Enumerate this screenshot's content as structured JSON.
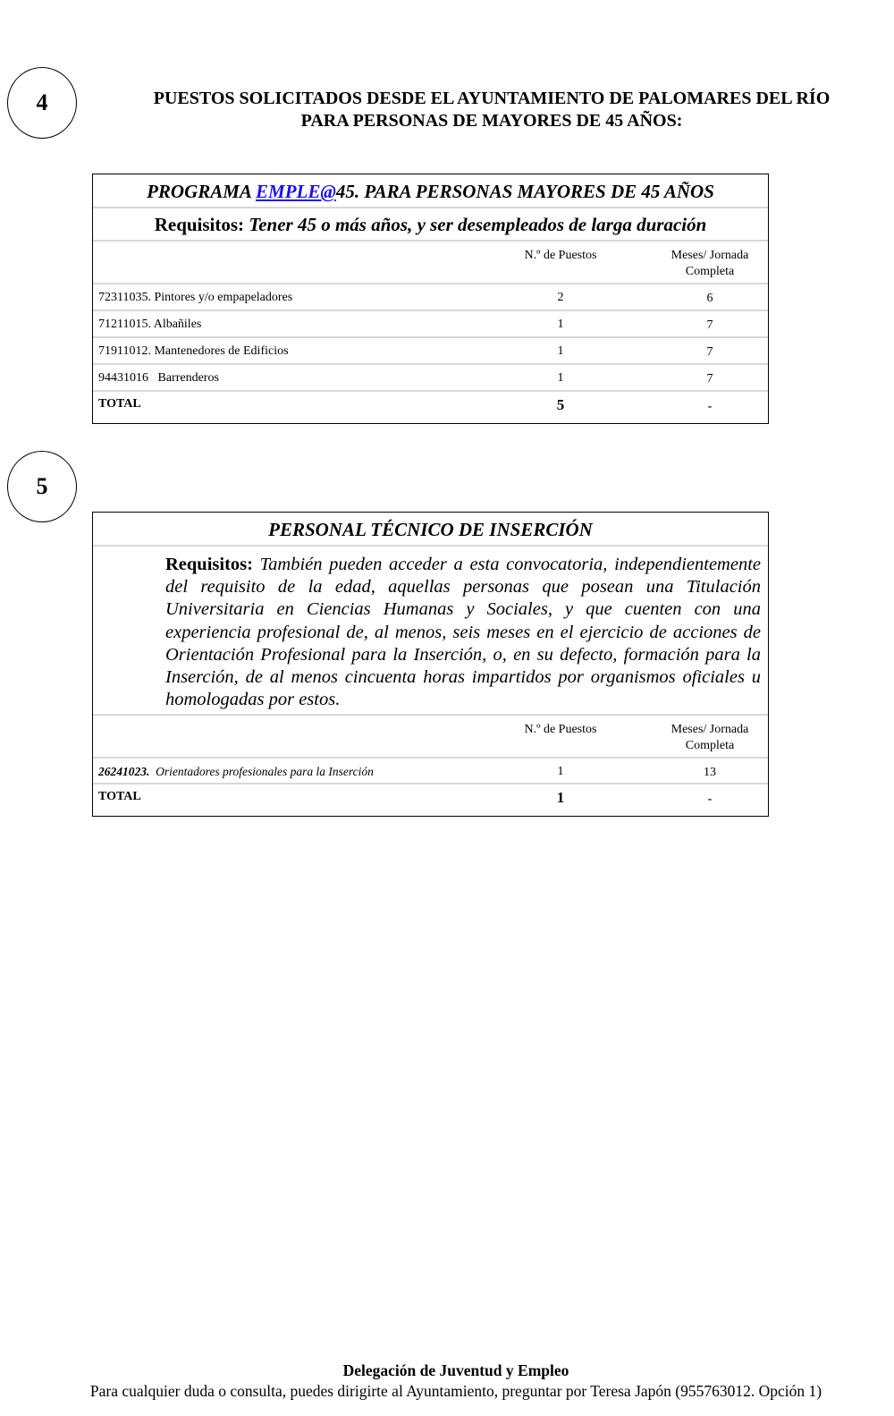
{
  "section4": {
    "number": "4",
    "heading_line1": "PUESTOS SOLICITADOS DESDE EL AYUNTAMIENTO DE PALOMARES DEL RÍO",
    "heading_line2": "PARA  PERSONAS DE MAYORES DE 45 AÑOS:",
    "table": {
      "title_prefix": "PROGRAMA ",
      "title_link": "EMPLE@",
      "title_suffix": "45.  PARA  PERSONAS MAYORES DE 45 AÑOS",
      "req_label": "Requisitos:",
      "req_text": " Tener 45 o más años, y ser desempleados de larga duración",
      "col_puestos": "N.º de Puestos",
      "col_meses_1": "Meses/ Jornada",
      "col_meses_2": "Completa",
      "rows": [
        {
          "job": "72311035.  Pintores y/o empapeladores",
          "puestos": "2",
          "meses": "6"
        },
        {
          "job": "71211015.  Albañiles",
          "puestos": "1",
          "meses": "7"
        },
        {
          "job": "71911012.  Mantenedores de Edificios",
          "puestos": "1",
          "meses": "7"
        },
        {
          "job": "94431016   Barrenderos",
          "puestos": "1",
          "meses": "7"
        }
      ],
      "total_label": "TOTAL",
      "total_puestos": "5",
      "total_meses": "-"
    }
  },
  "section5": {
    "number": "5",
    "table": {
      "title": "PERSONAL TÉCNICO DE INSERCIÓN",
      "req_label": "Requisitos:",
      "req_text": " También pueden acceder a esta convocatoria, independientemente del requisito de la edad, aquellas personas que posean una Titulación Universitaria en Ciencias Humanas y Sociales, y que cuenten con una experiencia profesional de, al menos, seis meses en el ejercicio de acciones de Orientación Profesional para la Inserción,  o, en su defecto, formación para la Inserción, de al menos cincuenta horas impartidos por organismos oficiales u homologadas por estos.",
      "col_puestos": "N.º de Puestos",
      "col_meses_1": "Meses/ Jornada",
      "col_meses_2": "Completa",
      "rows": [
        {
          "code": "26241023.",
          "job": "  Orientadores profesionales para la Inserción",
          "puestos": "1",
          "meses": "13"
        }
      ],
      "total_label": "TOTAL",
      "total_puestos": "1",
      "total_meses": "-"
    }
  },
  "footer": {
    "line1": "Delegación de Juventud y Empleo",
    "line2": "Para cualquier duda o consulta, puedes dirigirte al Ayuntamiento, preguntar por Teresa Japón (955763012. Opción 1)"
  }
}
